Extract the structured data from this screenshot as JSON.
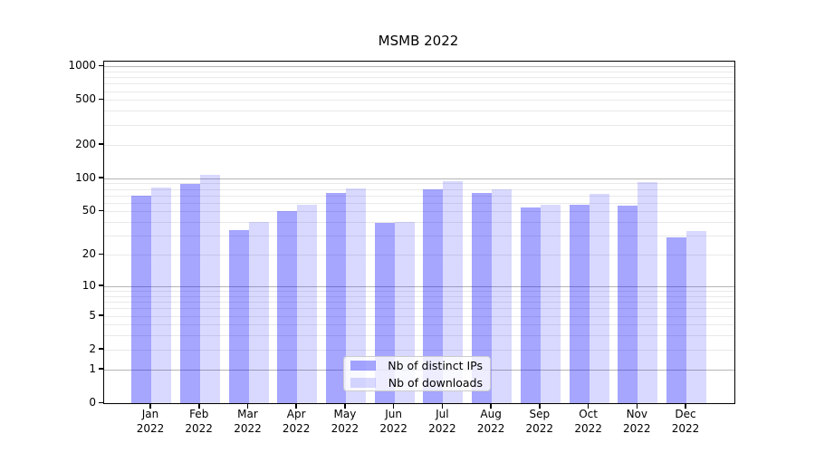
{
  "chart_data": {
    "type": "bar",
    "title": "MSMB 2022",
    "categories": [
      "Jan",
      "Feb",
      "Mar",
      "Apr",
      "May",
      "Jun",
      "Jul",
      "Aug",
      "Sep",
      "Oct",
      "Nov",
      "Dec"
    ],
    "year_label": "2022",
    "series": [
      {
        "name": "Nb of distinct IPs",
        "color": "rgba(0,0,255,0.35)",
        "flat_color": "#a6a6ff",
        "values": [
          70,
          89,
          34,
          50,
          74,
          39,
          80,
          74,
          54,
          57,
          56,
          29
        ]
      },
      {
        "name": "Nb of downloads",
        "color": "rgba(0,0,255,0.15)",
        "flat_color": "#d9d9ff",
        "values": [
          83,
          107,
          40,
          57,
          81,
          40,
          93,
          80,
          57,
          72,
          92,
          33
        ]
      }
    ],
    "xlabel": "",
    "ylabel": "",
    "y_scale": "log1p",
    "ylim": [
      0,
      1100
    ],
    "y_tick_values": [
      0,
      1,
      2,
      5,
      10,
      20,
      50,
      100,
      200,
      500,
      1000
    ],
    "grid": {
      "major_values": [
        1,
        10,
        100,
        1000
      ],
      "minor_bases": [
        2,
        3,
        4,
        5,
        6,
        7,
        8,
        9
      ],
      "minor_decades": [
        1,
        10,
        100
      ],
      "major_color": "#b5b5b5",
      "minor_color": "#e9e9e9"
    },
    "legend_position": "lower center"
  }
}
